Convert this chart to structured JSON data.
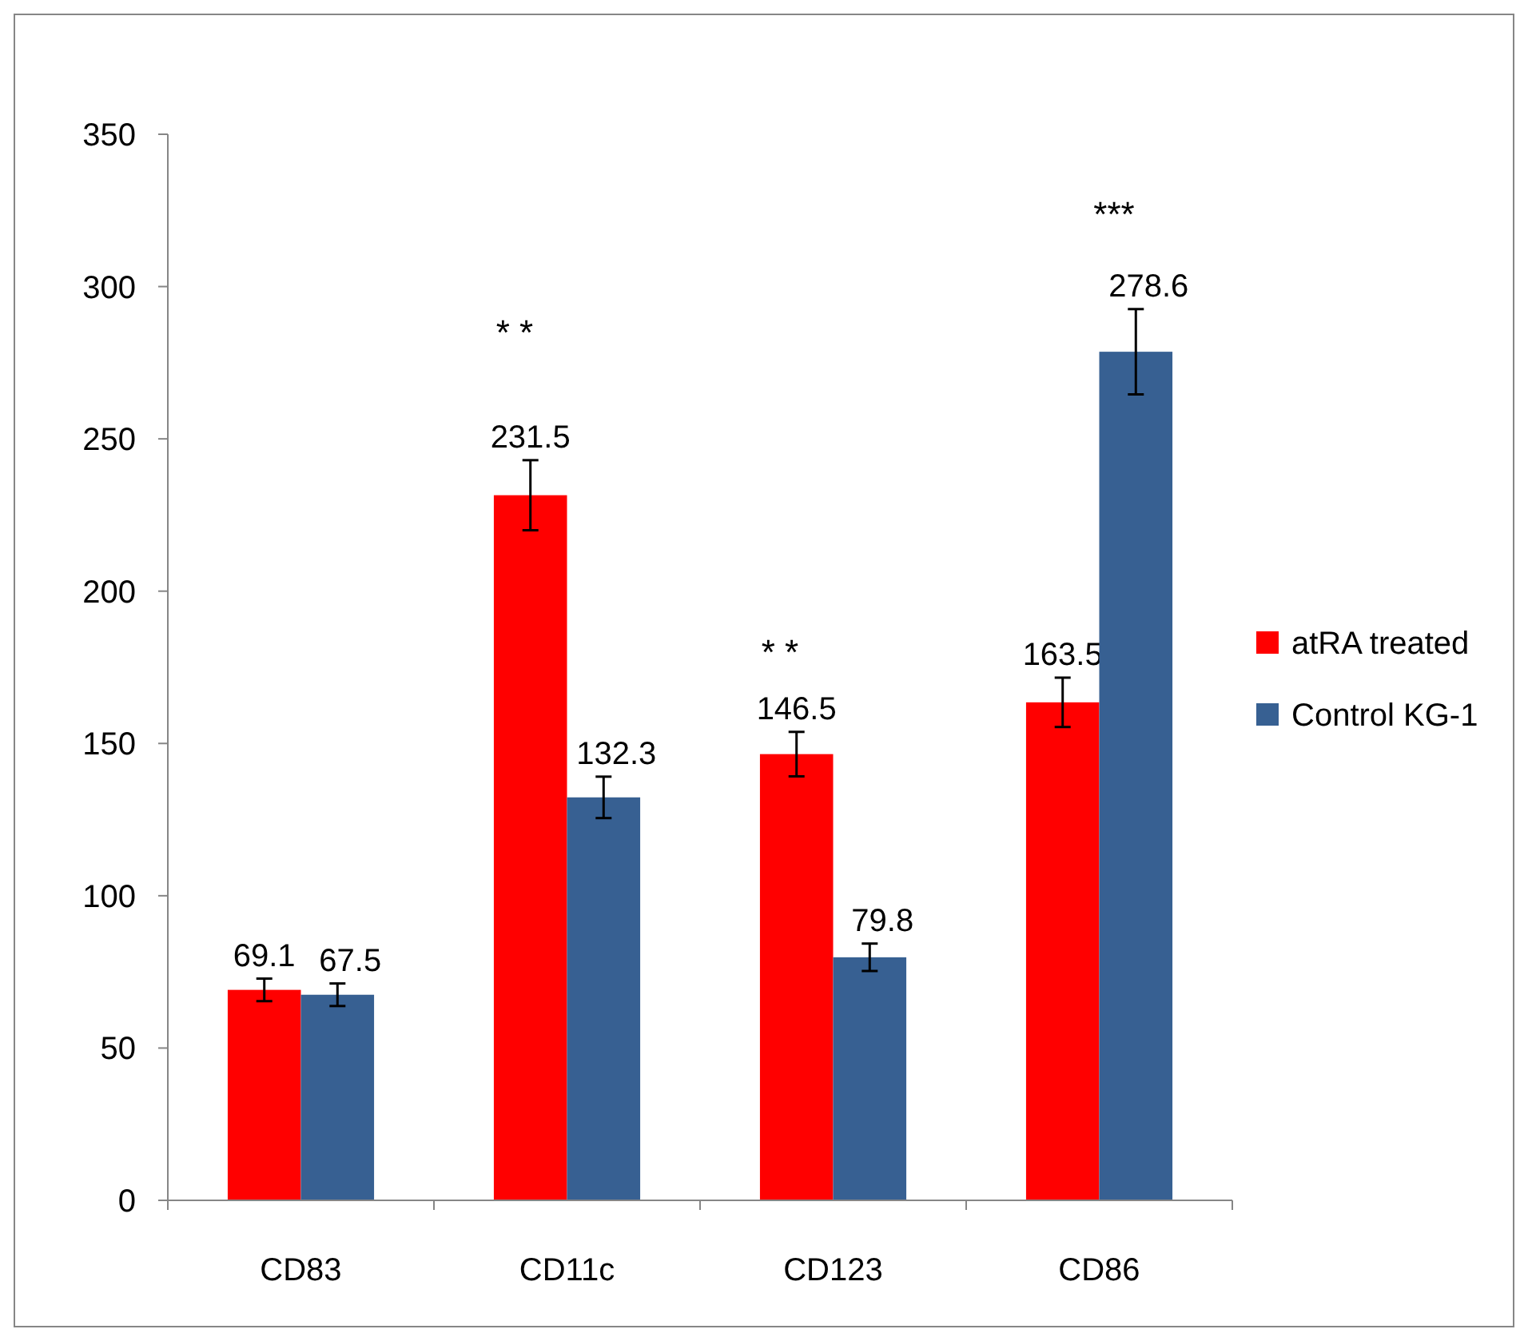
{
  "chart_data": {
    "type": "bar",
    "categories": [
      "CD83",
      "CD11c",
      "CD123",
      "CD86"
    ],
    "series": [
      {
        "name": "atRA treated",
        "color": "#ff0000",
        "values": [
          69.1,
          231.5,
          146.5,
          163.5
        ],
        "errors": [
          3.7,
          11.5,
          7.3,
          8.1
        ]
      },
      {
        "name": "Control KG-1",
        "color": "#376092",
        "values": [
          67.5,
          132.3,
          79.8,
          278.6
        ],
        "errors": [
          3.7,
          6.8,
          4.5,
          14
        ]
      }
    ],
    "ylim": [
      0,
      350
    ],
    "yticks": [
      0,
      50,
      100,
      150,
      200,
      250,
      300,
      350
    ],
    "grid": false,
    "legend": "right",
    "data_labels": true,
    "annotations": [
      "* *",
      "* *",
      "***"
    ]
  }
}
